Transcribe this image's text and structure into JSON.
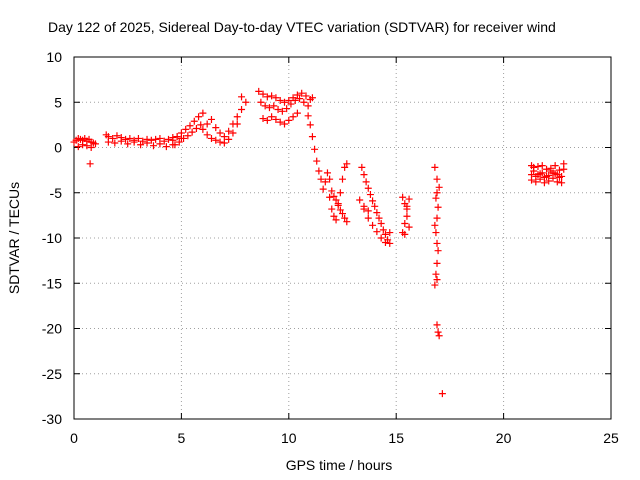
{
  "chart_data": {
    "type": "scatter",
    "title": "Day 122 of 2025, Sidereal Day-to-day VTEC variation (SDTVAR) for receiver wind",
    "xlabel": "GPS time / hours",
    "ylabel": "SDTVAR / TECUs",
    "xlim": [
      0,
      25
    ],
    "ylim": [
      -30,
      10
    ],
    "xticks": [
      0,
      5,
      10,
      15,
      20,
      25
    ],
    "yticks": [
      -30,
      -25,
      -20,
      -15,
      -10,
      -5,
      0,
      5,
      10
    ],
    "xtick_labels": [
      "0",
      "5",
      "10",
      "15",
      "20",
      "25"
    ],
    "ytick_labels": [
      "-30",
      "-25",
      "-20",
      "-15",
      "-10",
      "-5",
      "0",
      "5",
      "10"
    ],
    "grid": true,
    "marker": "+",
    "color": "#ff0000",
    "series": [
      {
        "name": "SDTVAR",
        "x": [
          0.0,
          0.1,
          0.2,
          0.3,
          0.4,
          0.5,
          0.6,
          0.7,
          0.8,
          0.9,
          1.0,
          0.2,
          0.4,
          0.6,
          0.8,
          0.75,
          1.5,
          1.6,
          1.8,
          2.0,
          2.2,
          2.4,
          2.6,
          2.8,
          3.0,
          3.2,
          3.4,
          3.6,
          3.8,
          4.0,
          4.2,
          4.4,
          4.6,
          4.8,
          5.0,
          1.6,
          1.9,
          2.2,
          2.5,
          2.8,
          3.1,
          3.4,
          3.7,
          4.0,
          4.3,
          4.6,
          4.6,
          4.8,
          5.0,
          5.2,
          5.4,
          5.6,
          5.8,
          6.0,
          4.7,
          4.9,
          5.1,
          5.3,
          5.5,
          5.7,
          5.9,
          6.0,
          6.2,
          6.4,
          6.6,
          6.8,
          7.0,
          7.2,
          7.4,
          7.6,
          7.8,
          8.0,
          6.2,
          6.4,
          6.6,
          6.8,
          7.0,
          7.2,
          7.4,
          7.6,
          7.8,
          8.6,
          8.8,
          9.0,
          9.2,
          9.4,
          9.6,
          9.8,
          10.0,
          10.2,
          10.4,
          10.6,
          10.8,
          11.0,
          11.1,
          8.7,
          8.9,
          9.1,
          9.3,
          9.5,
          9.7,
          9.9,
          10.1,
          10.3,
          10.5,
          10.7,
          10.9,
          8.8,
          9.0,
          9.2,
          9.4,
          9.6,
          9.8,
          10.0,
          10.2,
          10.4,
          10.9,
          11.0,
          11.1,
          11.2,
          11.3,
          11.4,
          11.5,
          11.6,
          11.7,
          11.8,
          11.9,
          12.0,
          12.1,
          12.2,
          12.3,
          12.4,
          12.5,
          12.6,
          12.7,
          11.9,
          12.0,
          12.1,
          12.2,
          12.3,
          12.4,
          12.5,
          12.6,
          12.7,
          13.4,
          13.5,
          13.6,
          13.7,
          13.8,
          13.9,
          14.0,
          14.1,
          14.2,
          14.3,
          14.4,
          14.5,
          14.6,
          14.7,
          13.5,
          13.7,
          13.9,
          14.1,
          14.3,
          14.5,
          14.7,
          13.3,
          13.5,
          13.7,
          15.3,
          15.4,
          15.5,
          15.6,
          15.3,
          15.4,
          15.5,
          15.6,
          15.4,
          15.5,
          16.8,
          16.9,
          17.0,
          16.9,
          16.85,
          16.95,
          16.9,
          16.8,
          16.85,
          16.9,
          16.95,
          16.9,
          16.85,
          16.8,
          16.9,
          16.9,
          16.95,
          17.0,
          17.15,
          21.3,
          21.4,
          21.6,
          21.8,
          22.0,
          22.2,
          22.4,
          22.6,
          22.8,
          21.3,
          21.5,
          21.7,
          21.9,
          22.1,
          22.3,
          22.5,
          22.7,
          21.4,
          21.6,
          21.8,
          22.0,
          22.2,
          22.4,
          22.6,
          22.8,
          21.3,
          21.5,
          21.7,
          21.9,
          22.1,
          22.3,
          22.5,
          22.7
        ],
        "y": [
          0.6,
          0.8,
          1.0,
          0.9,
          0.8,
          1.0,
          0.7,
          0.9,
          0.6,
          0.5,
          0.4,
          0.1,
          0.3,
          0.2,
          0.0,
          -1.8,
          1.4,
          1.2,
          1.0,
          1.3,
          1.1,
          0.9,
          1.0,
          0.8,
          1.0,
          0.7,
          0.9,
          0.8,
          0.9,
          1.0,
          0.7,
          0.9,
          1.1,
          1.2,
          1.0,
          0.6,
          0.5,
          0.7,
          0.4,
          0.6,
          0.3,
          0.5,
          0.2,
          0.4,
          0.1,
          0.3,
          0.8,
          1.2,
          1.6,
          2.0,
          2.4,
          2.9,
          3.4,
          3.8,
          0.3,
          0.6,
          1.0,
          1.3,
          1.7,
          2.1,
          2.5,
          2.0,
          2.6,
          3.1,
          2.2,
          1.6,
          1.2,
          1.8,
          2.6,
          3.4,
          4.2,
          5.0,
          1.4,
          1.0,
          0.8,
          0.6,
          0.5,
          0.9,
          1.6,
          2.6,
          5.6,
          6.2,
          5.9,
          5.6,
          5.7,
          5.5,
          5.2,
          5.0,
          5.2,
          5.5,
          5.8,
          6.0,
          5.7,
          5.3,
          5.5,
          5.0,
          4.6,
          4.4,
          4.6,
          4.2,
          4.0,
          4.3,
          4.8,
          5.2,
          5.4,
          5.0,
          4.6,
          3.2,
          3.0,
          3.4,
          3.1,
          2.8,
          2.6,
          3.0,
          3.4,
          3.8,
          3.5,
          2.5,
          1.2,
          -0.2,
          -1.5,
          -2.6,
          -3.5,
          -4.6,
          -3.8,
          -2.8,
          -3.5,
          -4.8,
          -5.4,
          -5.8,
          -6.4,
          -6.9,
          -7.3,
          -7.8,
          -8.2,
          -5.5,
          -6.8,
          -7.6,
          -8.0,
          -6.2,
          -5.0,
          -3.5,
          -2.2,
          -1.8,
          -2.2,
          -3.0,
          -3.8,
          -4.5,
          -5.2,
          -5.9,
          -6.5,
          -7.2,
          -7.8,
          -8.4,
          -9.1,
          -9.6,
          -10.2,
          -10.6,
          -6.8,
          -7.8,
          -8.6,
          -9.3,
          -10.0,
          -10.5,
          -9.4,
          -5.8,
          -6.5,
          -7.0,
          -5.5,
          -6.2,
          -7.6,
          -8.8,
          -9.4,
          -8.4,
          -6.5,
          -5.7,
          -9.6,
          -6.8,
          -2.2,
          -3.5,
          -4.4,
          -5.0,
          -5.6,
          -6.6,
          -7.8,
          -8.6,
          -9.4,
          -10.6,
          -11.4,
          -12.8,
          -14.0,
          -15.2,
          -14.6,
          -19.6,
          -20.4,
          -20.8,
          -27.2,
          -2.0,
          -2.6,
          -3.0,
          -2.8,
          -3.2,
          -2.6,
          -2.9,
          -3.3,
          -2.4,
          -3.6,
          -3.8,
          -3.5,
          -3.9,
          -3.7,
          -3.4,
          -3.8,
          -3.9,
          -2.2,
          -2.1,
          -2.0,
          -2.4,
          -2.3,
          -2.0,
          -2.5,
          -1.8,
          -3.0,
          -3.2,
          -2.9,
          -3.3,
          -3.1,
          -2.8,
          -3.0,
          -3.2
        ]
      }
    ]
  }
}
